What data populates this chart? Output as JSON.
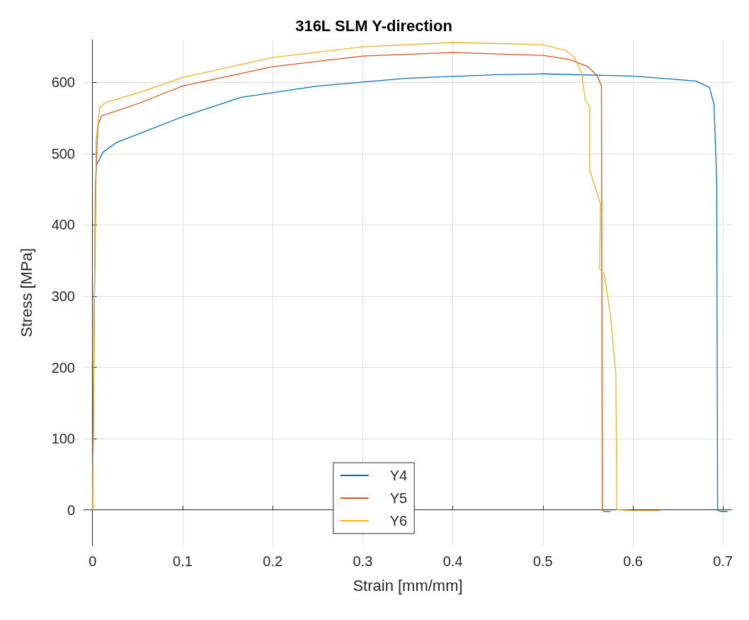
{
  "chart_data": {
    "type": "line",
    "title": "316L SLM Y-direction",
    "xlabel": "Strain [mm/mm]",
    "ylabel": "Stress [MPa]",
    "xlim": [
      -0.01,
      0.71
    ],
    "ylim": [
      -50,
      660
    ],
    "xticks": [
      0,
      0.1,
      0.2,
      0.3,
      0.4,
      0.5,
      0.6,
      0.7
    ],
    "yticks": [
      0,
      100,
      200,
      300,
      400,
      500,
      600
    ],
    "grid": true,
    "legend": "bottom",
    "marker": "none",
    "line_style": "solid",
    "series": [
      {
        "name": "Y4",
        "color": "#0072bd",
        "x": [
          0,
          0.002,
          0.004,
          0.0115,
          0.027,
          0.058,
          0.1,
          0.165,
          0.25,
          0.35,
          0.45,
          0.5,
          0.6,
          0.67,
          0.685,
          0.69,
          0.693,
          0.694,
          0.697,
          0.705
        ],
        "values": [
          0,
          300,
          483,
          502,
          516,
          531,
          552,
          579,
          595,
          606,
          611,
          612,
          609,
          602,
          593,
          569,
          463,
          0,
          -2,
          -2
        ]
      },
      {
        "name": "Y5",
        "color": "#d95319",
        "x": [
          0,
          0.002,
          0.003,
          0.006,
          0.01,
          0.05,
          0.1,
          0.2,
          0.3,
          0.4,
          0.5,
          0.53,
          0.55,
          0.56,
          0.565,
          0.566,
          0.568,
          0.575
        ],
        "values": [
          0,
          280,
          450,
          540,
          553,
          570,
          595,
          622,
          637,
          642,
          638,
          632,
          622,
          610,
          595,
          0,
          -2,
          -2
        ]
      },
      {
        "name": "Y6",
        "color": "#edb120",
        "x": [
          0,
          0.002,
          0.004,
          0.008,
          0.015,
          0.05,
          0.1,
          0.2,
          0.3,
          0.4,
          0.5,
          0.525,
          0.535,
          0.543,
          0.547,
          0.552,
          0.552,
          0.564,
          0.563,
          0.568,
          0.575,
          0.581,
          0.582,
          0.6,
          0.63
        ],
        "values": [
          0,
          300,
          520,
          565,
          572,
          585,
          607,
          635,
          650,
          656,
          653,
          645,
          635,
          613,
          576,
          565,
          477,
          429,
          338,
          332,
          274,
          191,
          0,
          -1,
          -1
        ]
      }
    ]
  }
}
